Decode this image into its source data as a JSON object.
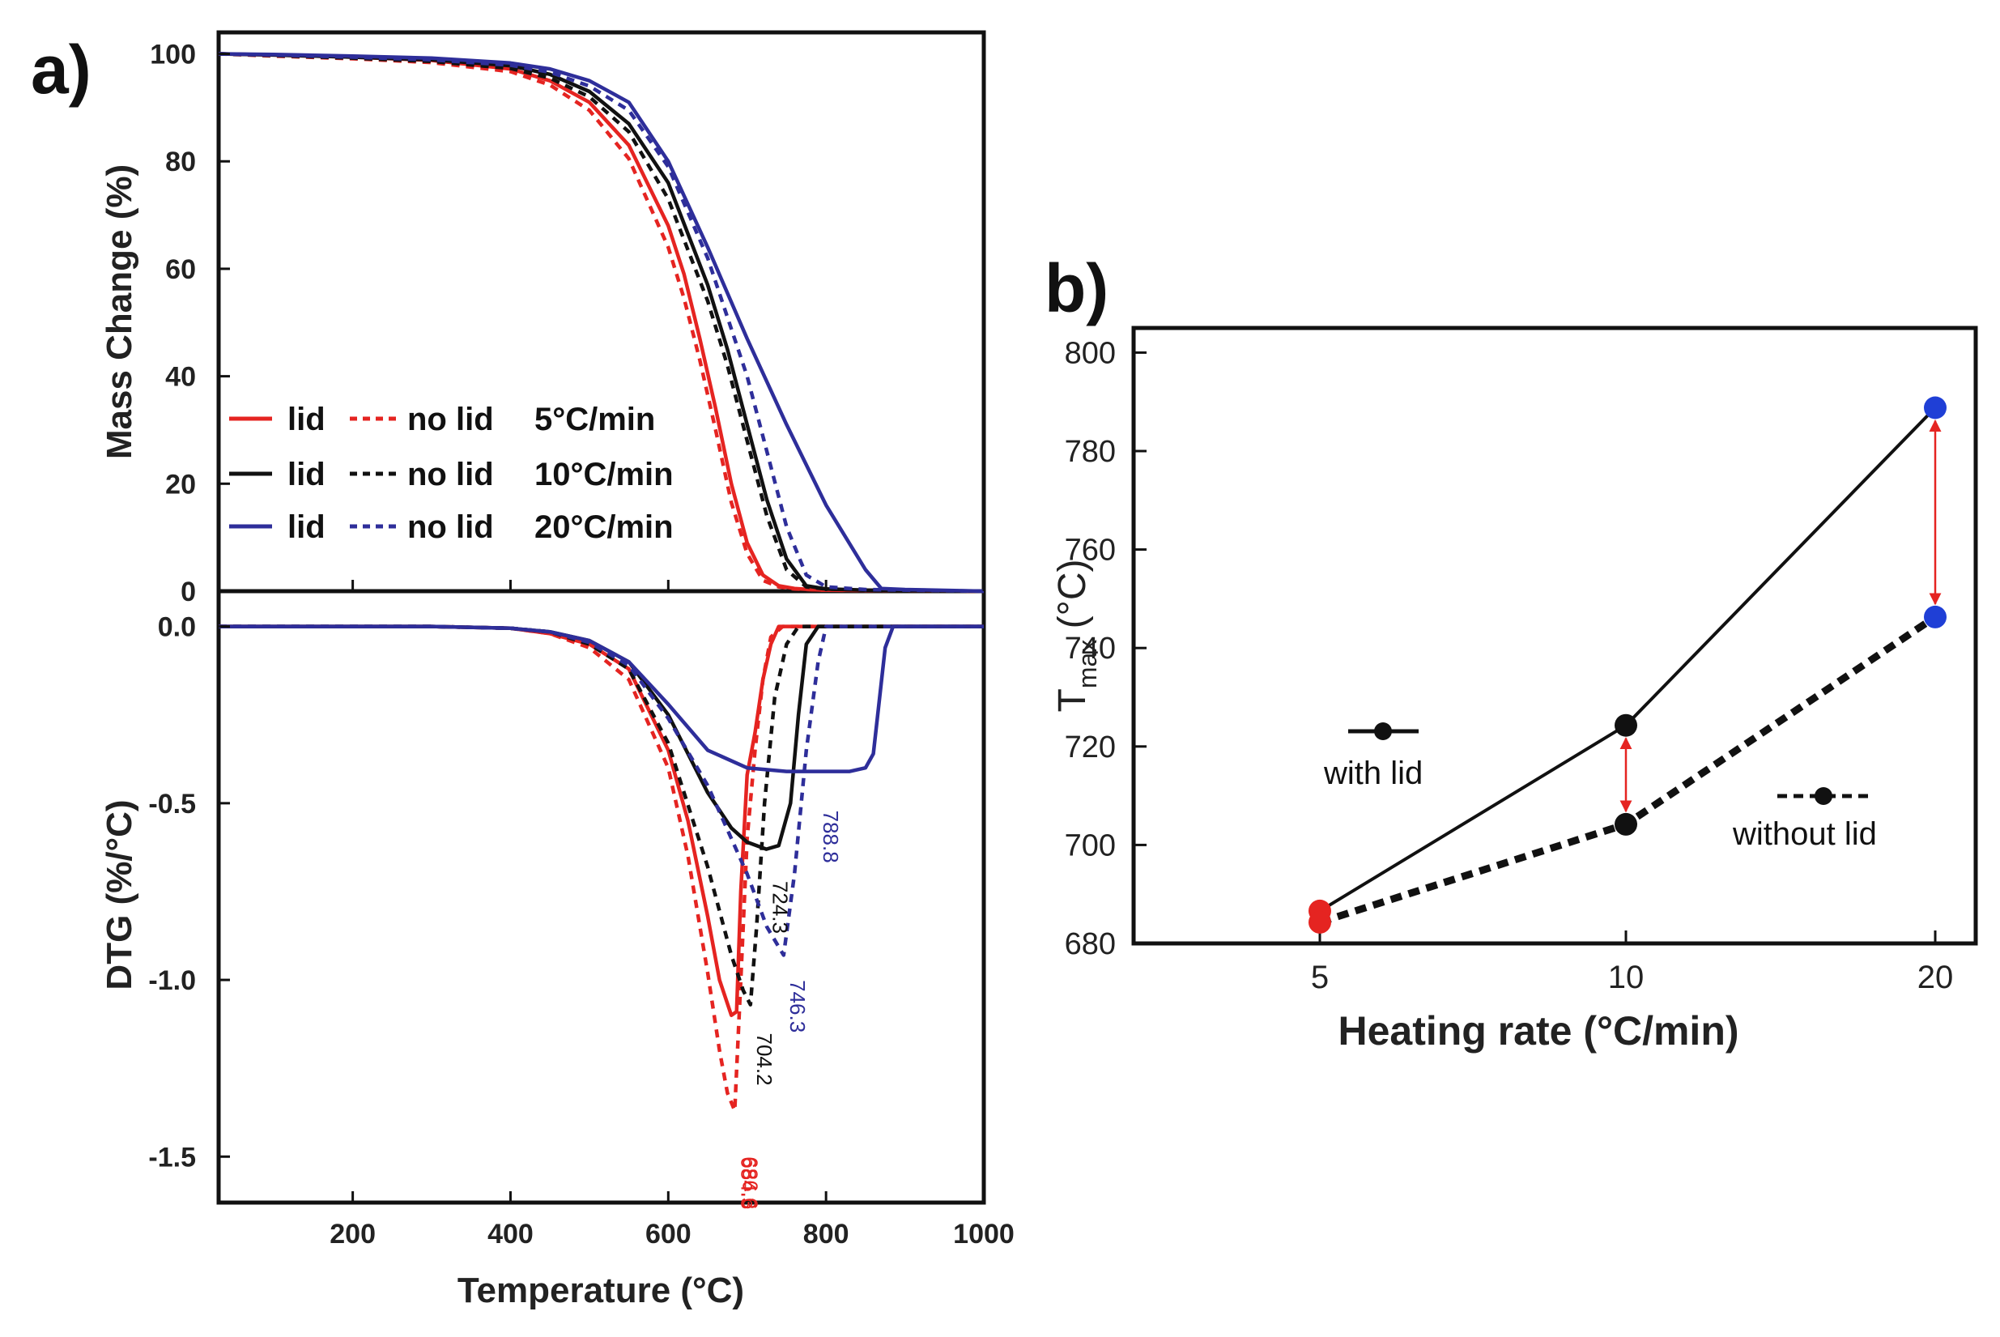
{
  "figure": {
    "panel_a_label": "a)",
    "panel_b_label": "b)"
  },
  "chart_data": [
    {
      "id": "a_top",
      "type": "line",
      "title": "",
      "ylabel": "Mass Change (%)",
      "xlabel": "",
      "xlim": [
        30,
        1000
      ],
      "ylim": [
        0,
        104
      ],
      "yticks": [
        0,
        20,
        40,
        60,
        80,
        100
      ],
      "ytick_labels": [
        "0",
        "20",
        "40",
        "60",
        "80",
        "100"
      ],
      "legend": {
        "location": "left-center",
        "rows": [
          {
            "solid_label": "lid",
            "dashed_label": "no lid",
            "rate_label": "5°C/min",
            "color": "#e52421"
          },
          {
            "solid_label": "lid",
            "dashed_label": "no lid",
            "rate_label": "10°C/min",
            "color": "#111111"
          },
          {
            "solid_label": "lid",
            "dashed_label": "no lid",
            "rate_label": "20°C/min",
            "color": "#2e2e9a"
          }
        ]
      },
      "series": [
        {
          "name": "lid 5°C/min",
          "color": "#e52421",
          "dash": "solid",
          "x": [
            30,
            100,
            200,
            300,
            400,
            450,
            500,
            550,
            600,
            620,
            640,
            660,
            680,
            700,
            720,
            740,
            760,
            780,
            800,
            900,
            1000
          ],
          "y": [
            100,
            99.8,
            99.4,
            98.8,
            97.2,
            95,
            91,
            83,
            68,
            59,
            47,
            34,
            20,
            9,
            3,
            1,
            0.5,
            0.3,
            0.2,
            0.1,
            0
          ]
        },
        {
          "name": "no lid 5°C/min",
          "color": "#e52421",
          "dash": "dashed",
          "x": [
            30,
            100,
            200,
            300,
            400,
            450,
            500,
            550,
            600,
            620,
            640,
            660,
            680,
            700,
            720,
            740,
            760,
            780,
            800,
            900,
            1000
          ],
          "y": [
            100,
            99.6,
            99.1,
            98.4,
            96.7,
            94.2,
            89.5,
            80.5,
            64,
            54.5,
            43,
            30,
            16.5,
            7,
            2,
            0.8,
            0.4,
            0.3,
            0.2,
            0.1,
            0
          ]
        },
        {
          "name": "lid 10°C/min",
          "color": "#111111",
          "dash": "solid",
          "x": [
            30,
            100,
            200,
            300,
            400,
            450,
            500,
            550,
            600,
            650,
            675,
            700,
            725,
            750,
            775,
            800,
            850,
            900,
            1000
          ],
          "y": [
            100,
            99.8,
            99.4,
            98.9,
            97.8,
            96.2,
            93,
            87,
            76,
            57,
            45,
            31,
            17,
            6,
            1,
            0.4,
            0.2,
            0.1,
            0
          ]
        },
        {
          "name": "no lid 10°C/min",
          "color": "#111111",
          "dash": "dashed",
          "x": [
            30,
            100,
            200,
            300,
            400,
            450,
            500,
            550,
            600,
            650,
            675,
            700,
            725,
            750,
            775,
            800,
            850,
            900,
            1000
          ],
          "y": [
            100,
            99.7,
            99.2,
            98.6,
            97.3,
            95.5,
            92,
            85.5,
            73,
            54,
            42,
            28,
            14,
            4,
            0.8,
            0.4,
            0.2,
            0.1,
            0
          ]
        },
        {
          "name": "lid 20°C/min",
          "color": "#2e2e9a",
          "dash": "solid",
          "x": [
            30,
            100,
            200,
            300,
            400,
            450,
            500,
            550,
            600,
            650,
            700,
            750,
            800,
            850,
            870,
            900,
            1000
          ],
          "y": [
            100,
            99.9,
            99.6,
            99.2,
            98.3,
            97.2,
            95,
            91,
            80,
            64,
            47,
            31,
            16,
            4,
            0.5,
            0.3,
            0
          ]
        },
        {
          "name": "no lid 20°C/min",
          "color": "#2e2e9a",
          "dash": "dashed",
          "x": [
            30,
            100,
            200,
            300,
            400,
            450,
            500,
            550,
            600,
            650,
            700,
            725,
            750,
            775,
            800,
            850,
            1000
          ],
          "y": [
            100,
            99.8,
            99.4,
            98.9,
            97.9,
            96.6,
            94,
            89.5,
            79,
            62,
            40,
            26,
            12,
            3,
            0.8,
            0.3,
            0
          ]
        }
      ]
    },
    {
      "id": "a_bottom",
      "type": "line",
      "title": "",
      "ylabel": "DTG (%/°C)",
      "xlabel": "Temperature (°C)",
      "xlim": [
        30,
        1000
      ],
      "ylim": [
        -1.63,
        0.1
      ],
      "yticks": [
        0.0,
        -0.5,
        -1.0,
        -1.5
      ],
      "ytick_labels": [
        "0.0",
        "-0.5",
        "-1.0",
        "-1.5"
      ],
      "xticks": [
        200,
        400,
        600,
        800,
        1000
      ],
      "xtick_labels": [
        "200",
        "400",
        "600",
        "800",
        "1000"
      ],
      "annotations": [
        {
          "text": "684.3",
          "x": 684.3,
          "y": -1.5,
          "color": "#e52421"
        },
        {
          "text": "686.6",
          "x": 686.6,
          "y": -1.5,
          "color": "#e52421"
        },
        {
          "text": "704.2",
          "x": 704.2,
          "y": -1.15,
          "color": "#111111"
        },
        {
          "text": "724.3",
          "x": 724.3,
          "y": -0.72,
          "color": "#111111"
        },
        {
          "text": "746.3",
          "x": 746.3,
          "y": -1.0,
          "color": "#2e2e9a"
        },
        {
          "text": "788.8",
          "x": 788.8,
          "y": -0.52,
          "color": "#2e2e9a"
        }
      ],
      "series": [
        {
          "name": "lid 5°C/min",
          "color": "#e52421",
          "dash": "solid",
          "x": [
            30,
            300,
            400,
            450,
            500,
            550,
            600,
            625,
            650,
            665,
            680,
            686.6,
            692,
            700,
            710,
            720,
            730,
            740,
            760,
            1000
          ],
          "y": [
            0,
            0,
            -0.005,
            -0.02,
            -0.05,
            -0.12,
            -0.35,
            -0.55,
            -0.82,
            -1.0,
            -1.1,
            -1.09,
            -0.75,
            -0.42,
            -0.3,
            -0.15,
            -0.05,
            0,
            0,
            0
          ]
        },
        {
          "name": "no lid 5°C/min",
          "color": "#e52421",
          "dash": "dashed",
          "x": [
            30,
            300,
            400,
            450,
            500,
            550,
            600,
            625,
            650,
            665,
            675,
            684.3,
            692,
            700,
            710,
            720,
            730,
            745,
            1000
          ],
          "y": [
            0,
            0,
            -0.005,
            -0.02,
            -0.06,
            -0.15,
            -0.4,
            -0.65,
            -0.98,
            -1.2,
            -1.32,
            -1.37,
            -1.0,
            -0.6,
            -0.35,
            -0.15,
            -0.03,
            0,
            0
          ]
        },
        {
          "name": "lid 10°C/min",
          "color": "#111111",
          "dash": "solid",
          "x": [
            30,
            300,
            400,
            450,
            500,
            550,
            600,
            650,
            680,
            700,
            724.3,
            740,
            755,
            765,
            775,
            790,
            1000
          ],
          "y": [
            0,
            0,
            -0.005,
            -0.015,
            -0.04,
            -0.1,
            -0.25,
            -0.47,
            -0.57,
            -0.61,
            -0.63,
            -0.62,
            -0.5,
            -0.25,
            -0.05,
            0,
            0
          ]
        },
        {
          "name": "no lid 10°C/min",
          "color": "#111111",
          "dash": "dashed",
          "x": [
            30,
            300,
            400,
            450,
            500,
            550,
            600,
            650,
            680,
            695,
            704.2,
            712,
            722,
            735,
            750,
            765,
            1000
          ],
          "y": [
            0,
            0,
            -0.005,
            -0.015,
            -0.05,
            -0.12,
            -0.33,
            -0.68,
            -0.93,
            -1.03,
            -1.07,
            -0.85,
            -0.5,
            -0.2,
            -0.05,
            0,
            0
          ]
        },
        {
          "name": "lid 20°C/min",
          "color": "#2e2e9a",
          "dash": "solid",
          "x": [
            30,
            300,
            400,
            450,
            500,
            550,
            600,
            650,
            700,
            750,
            788.8,
            830,
            850,
            860,
            868,
            875,
            885,
            1000
          ],
          "y": [
            0,
            0,
            -0.005,
            -0.015,
            -0.04,
            -0.1,
            -0.22,
            -0.35,
            -0.4,
            -0.41,
            -0.41,
            -0.41,
            -0.4,
            -0.36,
            -0.2,
            -0.06,
            0,
            0
          ]
        },
        {
          "name": "no lid 20°C/min",
          "color": "#2e2e9a",
          "dash": "dashed",
          "x": [
            30,
            300,
            400,
            450,
            500,
            550,
            600,
            650,
            700,
            725,
            746.3,
            760,
            775,
            790,
            800,
            1000
          ],
          "y": [
            0,
            0,
            -0.005,
            -0.015,
            -0.045,
            -0.11,
            -0.26,
            -0.45,
            -0.7,
            -0.85,
            -0.93,
            -0.7,
            -0.35,
            -0.1,
            0,
            0
          ]
        }
      ]
    },
    {
      "id": "b",
      "type": "line",
      "title": "",
      "xlabel": "Heating rate (°C/min)",
      "ylabel_main": "T",
      "ylabel_sub": "max",
      "ylabel_unit": " (°C)",
      "categories": [
        "5",
        "10",
        "20"
      ],
      "ylim": [
        680,
        805
      ],
      "yticks": [
        680,
        700,
        720,
        740,
        760,
        780,
        800
      ],
      "ytick_labels": [
        "680",
        "700",
        "720",
        "740",
        "760",
        "780",
        "800"
      ],
      "point_colors": [
        "#e52421",
        "#111111",
        "#1f3fd6"
      ],
      "series": [
        {
          "name": "with lid",
          "style": "solid",
          "values": [
            686.6,
            724.3,
            788.8
          ]
        },
        {
          "name": "without lid",
          "style": "dashed",
          "values": [
            684.3,
            704.2,
            746.3
          ]
        }
      ],
      "legend": [
        {
          "label": "with lid",
          "style": "solid",
          "location": "middle-left"
        },
        {
          "label": "without lid",
          "style": "dashed",
          "location": "middle-right"
        }
      ],
      "arrows": [
        {
          "category": "10",
          "from": 724.3,
          "to": 704.2,
          "color": "#e52421"
        },
        {
          "category": "20",
          "from": 788.8,
          "to": 746.3,
          "color": "#e52421"
        }
      ]
    }
  ]
}
